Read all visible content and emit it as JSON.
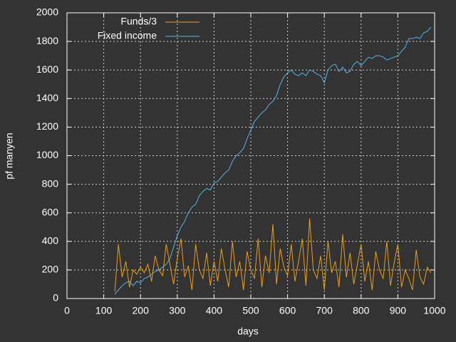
{
  "chart_data": {
    "type": "line",
    "xlabel": "days",
    "ylabel": "pf manyen",
    "x": [
      130,
      140,
      150,
      160,
      170,
      180,
      190,
      200,
      210,
      220,
      230,
      240,
      250,
      260,
      270,
      280,
      290,
      300,
      310,
      320,
      330,
      340,
      350,
      360,
      370,
      380,
      390,
      400,
      410,
      420,
      430,
      440,
      450,
      460,
      470,
      480,
      490,
      500,
      510,
      520,
      530,
      540,
      550,
      560,
      570,
      580,
      590,
      600,
      610,
      620,
      630,
      640,
      650,
      660,
      670,
      680,
      690,
      700,
      710,
      720,
      730,
      740,
      750,
      760,
      770,
      780,
      790,
      800,
      810,
      820,
      830,
      840,
      850,
      860,
      870,
      880,
      890,
      900,
      910,
      920,
      930,
      940,
      950,
      960,
      970,
      980,
      990
    ],
    "series": [
      {
        "name": "Funds/3",
        "color": "#f0a000",
        "values": [
          50,
          380,
          150,
          260,
          80,
          200,
          170,
          220,
          180,
          240,
          120,
          300,
          200,
          160,
          380,
          240,
          100,
          280,
          420,
          150,
          230,
          60,
          380,
          200,
          140,
          320,
          90,
          260,
          120,
          350,
          200,
          80,
          400,
          150,
          260,
          60,
          330,
          200,
          140,
          420,
          80,
          300,
          180,
          520,
          100,
          350,
          220,
          160,
          380,
          120,
          260,
          420,
          90,
          560,
          200,
          140,
          300,
          60,
          400,
          180,
          260,
          80,
          450,
          150,
          320,
          100,
          240,
          380,
          120,
          260,
          60,
          330,
          200,
          140,
          400,
          90,
          250,
          380,
          80,
          200,
          140,
          60,
          340,
          150,
          100,
          220,
          180
        ]
      },
      {
        "name": "Fixed income",
        "color": "#56b4e9",
        "values": [
          30,
          60,
          90,
          110,
          120,
          90,
          120,
          110,
          140,
          150,
          170,
          190,
          200,
          220,
          240,
          280,
          360,
          440,
          500,
          540,
          600,
          640,
          660,
          720,
          750,
          770,
          760,
          810,
          820,
          850,
          880,
          900,
          960,
          1000,
          1020,
          1050,
          1120,
          1180,
          1240,
          1270,
          1300,
          1320,
          1360,
          1380,
          1420,
          1500,
          1550,
          1580,
          1600,
          1570,
          1560,
          1580,
          1560,
          1600,
          1590,
          1570,
          1560,
          1510,
          1600,
          1630,
          1640,
          1590,
          1620,
          1580,
          1590,
          1640,
          1660,
          1630,
          1660,
          1690,
          1680,
          1700,
          1700,
          1690,
          1670,
          1680,
          1690,
          1700,
          1730,
          1760,
          1820,
          1820,
          1830,
          1820,
          1860,
          1870,
          1900
        ]
      }
    ],
    "xlim": [
      0,
      1000
    ],
    "xticks": [
      0,
      100,
      200,
      300,
      400,
      500,
      600,
      700,
      800,
      900,
      1000
    ],
    "ylim": [
      0,
      2000
    ],
    "yticks": [
      0,
      200,
      400,
      600,
      800,
      1000,
      1200,
      1400,
      1600,
      1800,
      2000
    ],
    "grid": true,
    "legend": "top-left"
  }
}
